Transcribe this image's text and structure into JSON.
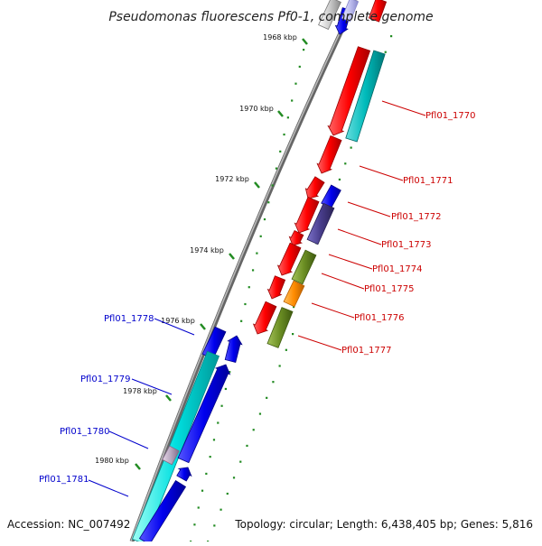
{
  "title": "Pseudomonas fluorescens Pf0-1, complete genome",
  "ticks": [
    "1968 kbp",
    "1970 kbp",
    "1972 kbp",
    "1974 kbp",
    "1976 kbp",
    "1978 kbp",
    "1980 kbp"
  ],
  "forward_labels": [
    "Pfl01_1770",
    "Pfl01_1771",
    "Pfl01_1772",
    "Pfl01_1773",
    "Pfl01_1774",
    "Pfl01_1775",
    "Pfl01_1776",
    "Pfl01_1777"
  ],
  "reverse_labels": [
    "Pfl01_1778",
    "Pfl01_1779",
    "Pfl01_1780",
    "Pfl01_1781"
  ],
  "colors": {
    "cds_forward": "#ff0000",
    "cds_reverse": "#0000ee",
    "cyan_feature": "#00dddd",
    "olive_feature": "#6b8e23",
    "orange_feature": "#ff8c00",
    "slate_feature": "#483d8b",
    "backbone": "#777777",
    "tick": "#228b22",
    "fwd_label": "#cc0000",
    "rev_label": "#0000cc"
  },
  "footer": {
    "accession": "Accession: NC_007492",
    "summary": "Topology: circular; Length: 6,438,405 bp; Genes: 5,816"
  }
}
